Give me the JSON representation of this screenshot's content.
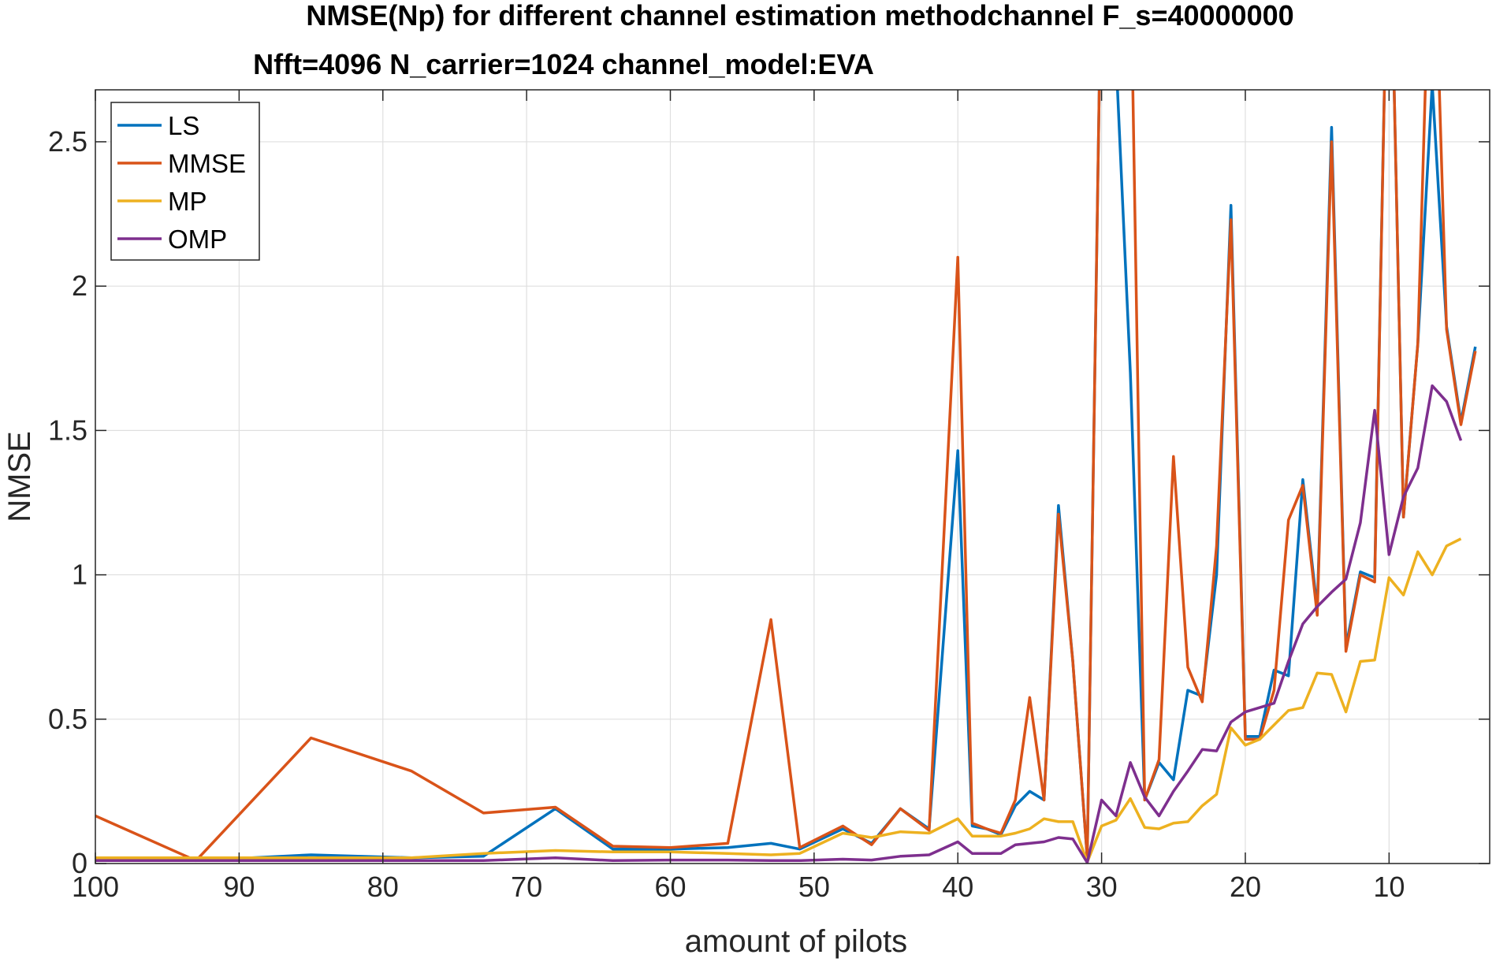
{
  "chart_data": {
    "type": "line",
    "title_line1": "NMSE(Np) for different channel estimation methodchannel F_s=40000000",
    "title_line2": "Nfft=4096 N_carrier=1024 channel_model:EVA",
    "xlabel": "amount of pilots",
    "ylabel": "NMSE",
    "xlim": [
      100,
      3
    ],
    "x_reversed": true,
    "ylim": [
      0,
      2.68
    ],
    "xticks": [
      100,
      90,
      80,
      70,
      60,
      50,
      40,
      30,
      20,
      10
    ],
    "yticks": [
      0,
      0.5,
      1,
      1.5,
      2,
      2.5
    ],
    "xtick_labels": [
      "100",
      "90",
      "80",
      "70",
      "60",
      "50",
      "40",
      "30",
      "20",
      "10"
    ],
    "ytick_labels": [
      "0",
      "0.5",
      "1",
      "1.5",
      "2",
      "2.5"
    ],
    "grid": true,
    "legend_position": "top-left",
    "series": [
      {
        "name": "LS",
        "color": "#0072BD",
        "points": [
          [
            100,
            0.015
          ],
          [
            93,
            0.01
          ],
          [
            85,
            0.03
          ],
          [
            78,
            0.02
          ],
          [
            73,
            0.025
          ],
          [
            68,
            0.19
          ],
          [
            64,
            0.05
          ],
          [
            60,
            0.05
          ],
          [
            56,
            0.055
          ],
          [
            53,
            0.07
          ],
          [
            51,
            0.05
          ],
          [
            48,
            0.12
          ],
          [
            46,
            0.07
          ],
          [
            44,
            0.19
          ],
          [
            42,
            0.12
          ],
          [
            40,
            1.43
          ],
          [
            39,
            0.13
          ],
          [
            38,
            0.12
          ],
          [
            37,
            0.1
          ],
          [
            36,
            0.2
          ],
          [
            35,
            0.25
          ],
          [
            34,
            0.22
          ],
          [
            33,
            1.24
          ],
          [
            32,
            0.7
          ],
          [
            31,
            0.02
          ],
          [
            30,
            3.2
          ],
          [
            29,
            2.8
          ],
          [
            28,
            1.7
          ],
          [
            27,
            0.22
          ],
          [
            26,
            0.35
          ],
          [
            25,
            0.29
          ],
          [
            24,
            0.6
          ],
          [
            23,
            0.58
          ],
          [
            22,
            1.0
          ],
          [
            21,
            2.28
          ],
          [
            20,
            0.44
          ],
          [
            19,
            0.44
          ],
          [
            18,
            0.67
          ],
          [
            17,
            0.65
          ],
          [
            16,
            1.33
          ],
          [
            15,
            0.88
          ],
          [
            14,
            2.55
          ],
          [
            13,
            0.75
          ],
          [
            12,
            1.01
          ],
          [
            11,
            0.99
          ],
          [
            10,
            3.5
          ],
          [
            9,
            1.2
          ],
          [
            8,
            1.8
          ],
          [
            7,
            2.7
          ],
          [
            6,
            1.86
          ],
          [
            5,
            1.53
          ],
          [
            4,
            1.79
          ]
        ]
      },
      {
        "name": "MMSE",
        "color": "#D95319",
        "points": [
          [
            100,
            0.165
          ],
          [
            93,
            0.01
          ],
          [
            85,
            0.435
          ],
          [
            78,
            0.32
          ],
          [
            73,
            0.175
          ],
          [
            68,
            0.195
          ],
          [
            64,
            0.06
          ],
          [
            60,
            0.055
          ],
          [
            56,
            0.07
          ],
          [
            53,
            0.845
          ],
          [
            51,
            0.055
          ],
          [
            48,
            0.13
          ],
          [
            46,
            0.065
          ],
          [
            44,
            0.19
          ],
          [
            42,
            0.115
          ],
          [
            40,
            2.1
          ],
          [
            39,
            0.14
          ],
          [
            38,
            0.12
          ],
          [
            37,
            0.105
          ],
          [
            36,
            0.22
          ],
          [
            35,
            0.575
          ],
          [
            34,
            0.22
          ],
          [
            33,
            1.21
          ],
          [
            32,
            0.7
          ],
          [
            31,
            0.02
          ],
          [
            30,
            3.2
          ],
          [
            29,
            2.9
          ],
          [
            28,
            3.2
          ],
          [
            27,
            0.22
          ],
          [
            26,
            0.36
          ],
          [
            25,
            1.41
          ],
          [
            24,
            0.68
          ],
          [
            23,
            0.56
          ],
          [
            22,
            1.1
          ],
          [
            21,
            2.23
          ],
          [
            20,
            0.43
          ],
          [
            19,
            0.43
          ],
          [
            18,
            0.6
          ],
          [
            17,
            1.19
          ],
          [
            16,
            1.31
          ],
          [
            15,
            0.86
          ],
          [
            14,
            2.5
          ],
          [
            13,
            0.735
          ],
          [
            12,
            1.0
          ],
          [
            11,
            0.975
          ],
          [
            10,
            3.5
          ],
          [
            9,
            1.2
          ],
          [
            8,
            1.8
          ],
          [
            7,
            3.5
          ],
          [
            6,
            1.85
          ],
          [
            5,
            1.52
          ],
          [
            4,
            1.775
          ]
        ]
      },
      {
        "name": "MP",
        "color": "#EDB120",
        "points": [
          [
            100,
            0.02
          ],
          [
            93,
            0.02
          ],
          [
            85,
            0.02
          ],
          [
            78,
            0.02
          ],
          [
            73,
            0.035
          ],
          [
            68,
            0.045
          ],
          [
            64,
            0.04
          ],
          [
            60,
            0.04
          ],
          [
            56,
            0.035
          ],
          [
            53,
            0.03
          ],
          [
            51,
            0.035
          ],
          [
            48,
            0.105
          ],
          [
            46,
            0.09
          ],
          [
            44,
            0.11
          ],
          [
            42,
            0.105
          ],
          [
            40,
            0.155
          ],
          [
            39,
            0.095
          ],
          [
            38,
            0.095
          ],
          [
            37,
            0.095
          ],
          [
            36,
            0.105
          ],
          [
            35,
            0.12
          ],
          [
            34,
            0.155
          ],
          [
            33,
            0.145
          ],
          [
            32,
            0.145
          ],
          [
            31,
            0.005
          ],
          [
            30,
            0.13
          ],
          [
            29,
            0.15
          ],
          [
            28,
            0.225
          ],
          [
            27,
            0.125
          ],
          [
            26,
            0.12
          ],
          [
            25,
            0.14
          ],
          [
            24,
            0.145
          ],
          [
            23,
            0.2
          ],
          [
            22,
            0.24
          ],
          [
            21,
            0.47
          ],
          [
            20,
            0.41
          ],
          [
            19,
            0.43
          ],
          [
            18,
            0.48
          ],
          [
            17,
            0.53
          ],
          [
            16,
            0.54
          ],
          [
            15,
            0.66
          ],
          [
            14,
            0.655
          ],
          [
            13,
            0.525
          ],
          [
            12,
            0.7
          ],
          [
            11,
            0.705
          ],
          [
            10,
            0.99
          ],
          [
            9,
            0.93
          ],
          [
            8,
            1.08
          ],
          [
            7,
            1.0
          ],
          [
            6,
            1.1
          ],
          [
            5,
            1.125
          ]
        ]
      },
      {
        "name": "OMP",
        "color": "#7E2F8E",
        "points": [
          [
            100,
            0.01
          ],
          [
            93,
            0.01
          ],
          [
            85,
            0.01
          ],
          [
            78,
            0.01
          ],
          [
            73,
            0.01
          ],
          [
            68,
            0.02
          ],
          [
            64,
            0.01
          ],
          [
            60,
            0.012
          ],
          [
            56,
            0.012
          ],
          [
            53,
            0.01
          ],
          [
            51,
            0.01
          ],
          [
            48,
            0.015
          ],
          [
            46,
            0.012
          ],
          [
            44,
            0.025
          ],
          [
            42,
            0.03
          ],
          [
            40,
            0.075
          ],
          [
            39,
            0.035
          ],
          [
            38,
            0.035
          ],
          [
            37,
            0.035
          ],
          [
            36,
            0.065
          ],
          [
            35,
            0.07
          ],
          [
            34,
            0.075
          ],
          [
            33,
            0.09
          ],
          [
            32,
            0.085
          ],
          [
            31,
            0.003
          ],
          [
            30,
            0.22
          ],
          [
            29,
            0.165
          ],
          [
            28,
            0.35
          ],
          [
            27,
            0.23
          ],
          [
            26,
            0.165
          ],
          [
            25,
            0.25
          ],
          [
            24,
            0.32
          ],
          [
            23,
            0.395
          ],
          [
            22,
            0.39
          ],
          [
            21,
            0.49
          ],
          [
            20,
            0.525
          ],
          [
            19,
            0.54
          ],
          [
            18,
            0.555
          ],
          [
            17,
            0.7
          ],
          [
            16,
            0.83
          ],
          [
            15,
            0.89
          ],
          [
            14,
            0.94
          ],
          [
            13,
            0.985
          ],
          [
            12,
            1.18
          ],
          [
            11,
            1.57
          ],
          [
            10,
            1.07
          ],
          [
            9,
            1.27
          ],
          [
            8,
            1.37
          ],
          [
            7,
            1.655
          ],
          [
            6,
            1.6
          ],
          [
            5,
            1.465
          ]
        ]
      }
    ]
  }
}
